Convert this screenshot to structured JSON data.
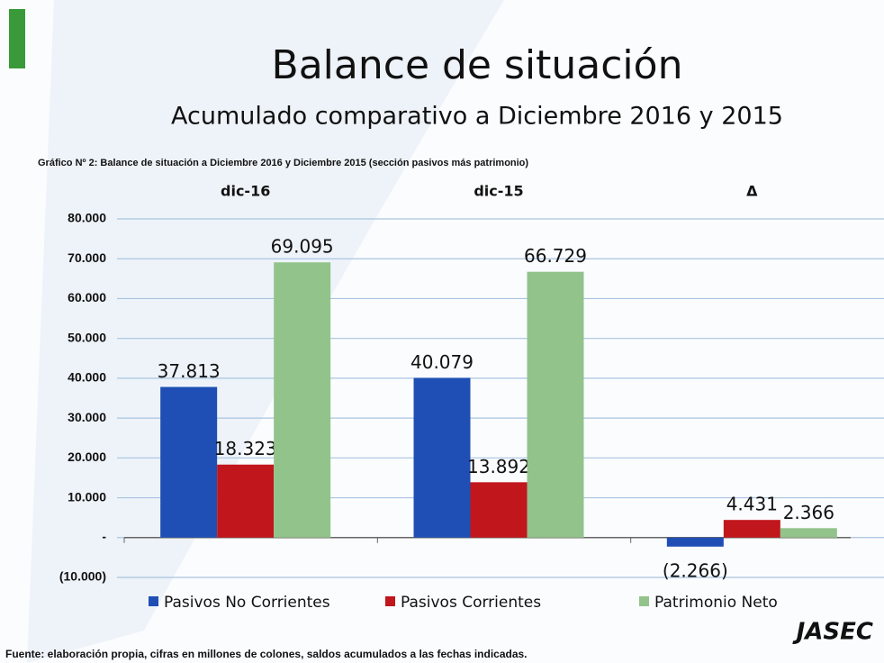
{
  "chart_data": {
    "type": "bar",
    "title": "Balance de situación",
    "subtitle": "Acumulado comparativo a Diciembre 2016 y 2015",
    "caption": "Gráfico Nº 2: Balance de situación a Diciembre 2016 y Diciembre 2015 (sección pasivos más patrimonio)",
    "source": "Fuente: elaboración propia, cifras en millones de colones, saldos acumulados a las fechas indicadas.",
    "logo": "JASEC",
    "categories": [
      "dic-16",
      "dic-15",
      "Δ"
    ],
    "series": [
      {
        "name": "Pasivos No Corrientes",
        "color": "#1f4fb4",
        "values": [
          37813,
          40079,
          -2266
        ],
        "value_labels": [
          "37.813",
          "40.079",
          "(2.266)"
        ]
      },
      {
        "name": "Pasivos Corrientes",
        "color": "#c0161c",
        "values": [
          18323,
          13892,
          4431
        ],
        "value_labels": [
          "18.323",
          "13.892",
          "4.431"
        ]
      },
      {
        "name": "Patrimonio Neto",
        "color": "#92c38b",
        "values": [
          69095,
          66729,
          2366
        ],
        "value_labels": [
          "69.095",
          "66.729",
          "2.366"
        ]
      }
    ],
    "ylim": [
      -10000,
      80000
    ],
    "yticks": [
      {
        "value": -10000,
        "label": "(10.000)"
      },
      {
        "value": 0,
        "label": "-"
      },
      {
        "value": 10000,
        "label": "10.000"
      },
      {
        "value": 20000,
        "label": "20.000"
      },
      {
        "value": 30000,
        "label": "30.000"
      },
      {
        "value": 40000,
        "label": "40.000"
      },
      {
        "value": 50000,
        "label": "50.000"
      },
      {
        "value": 60000,
        "label": "60.000"
      },
      {
        "value": 70000,
        "label": "70.000"
      },
      {
        "value": 80000,
        "label": "80.000"
      }
    ],
    "grid": true,
    "legend": "bottom"
  }
}
